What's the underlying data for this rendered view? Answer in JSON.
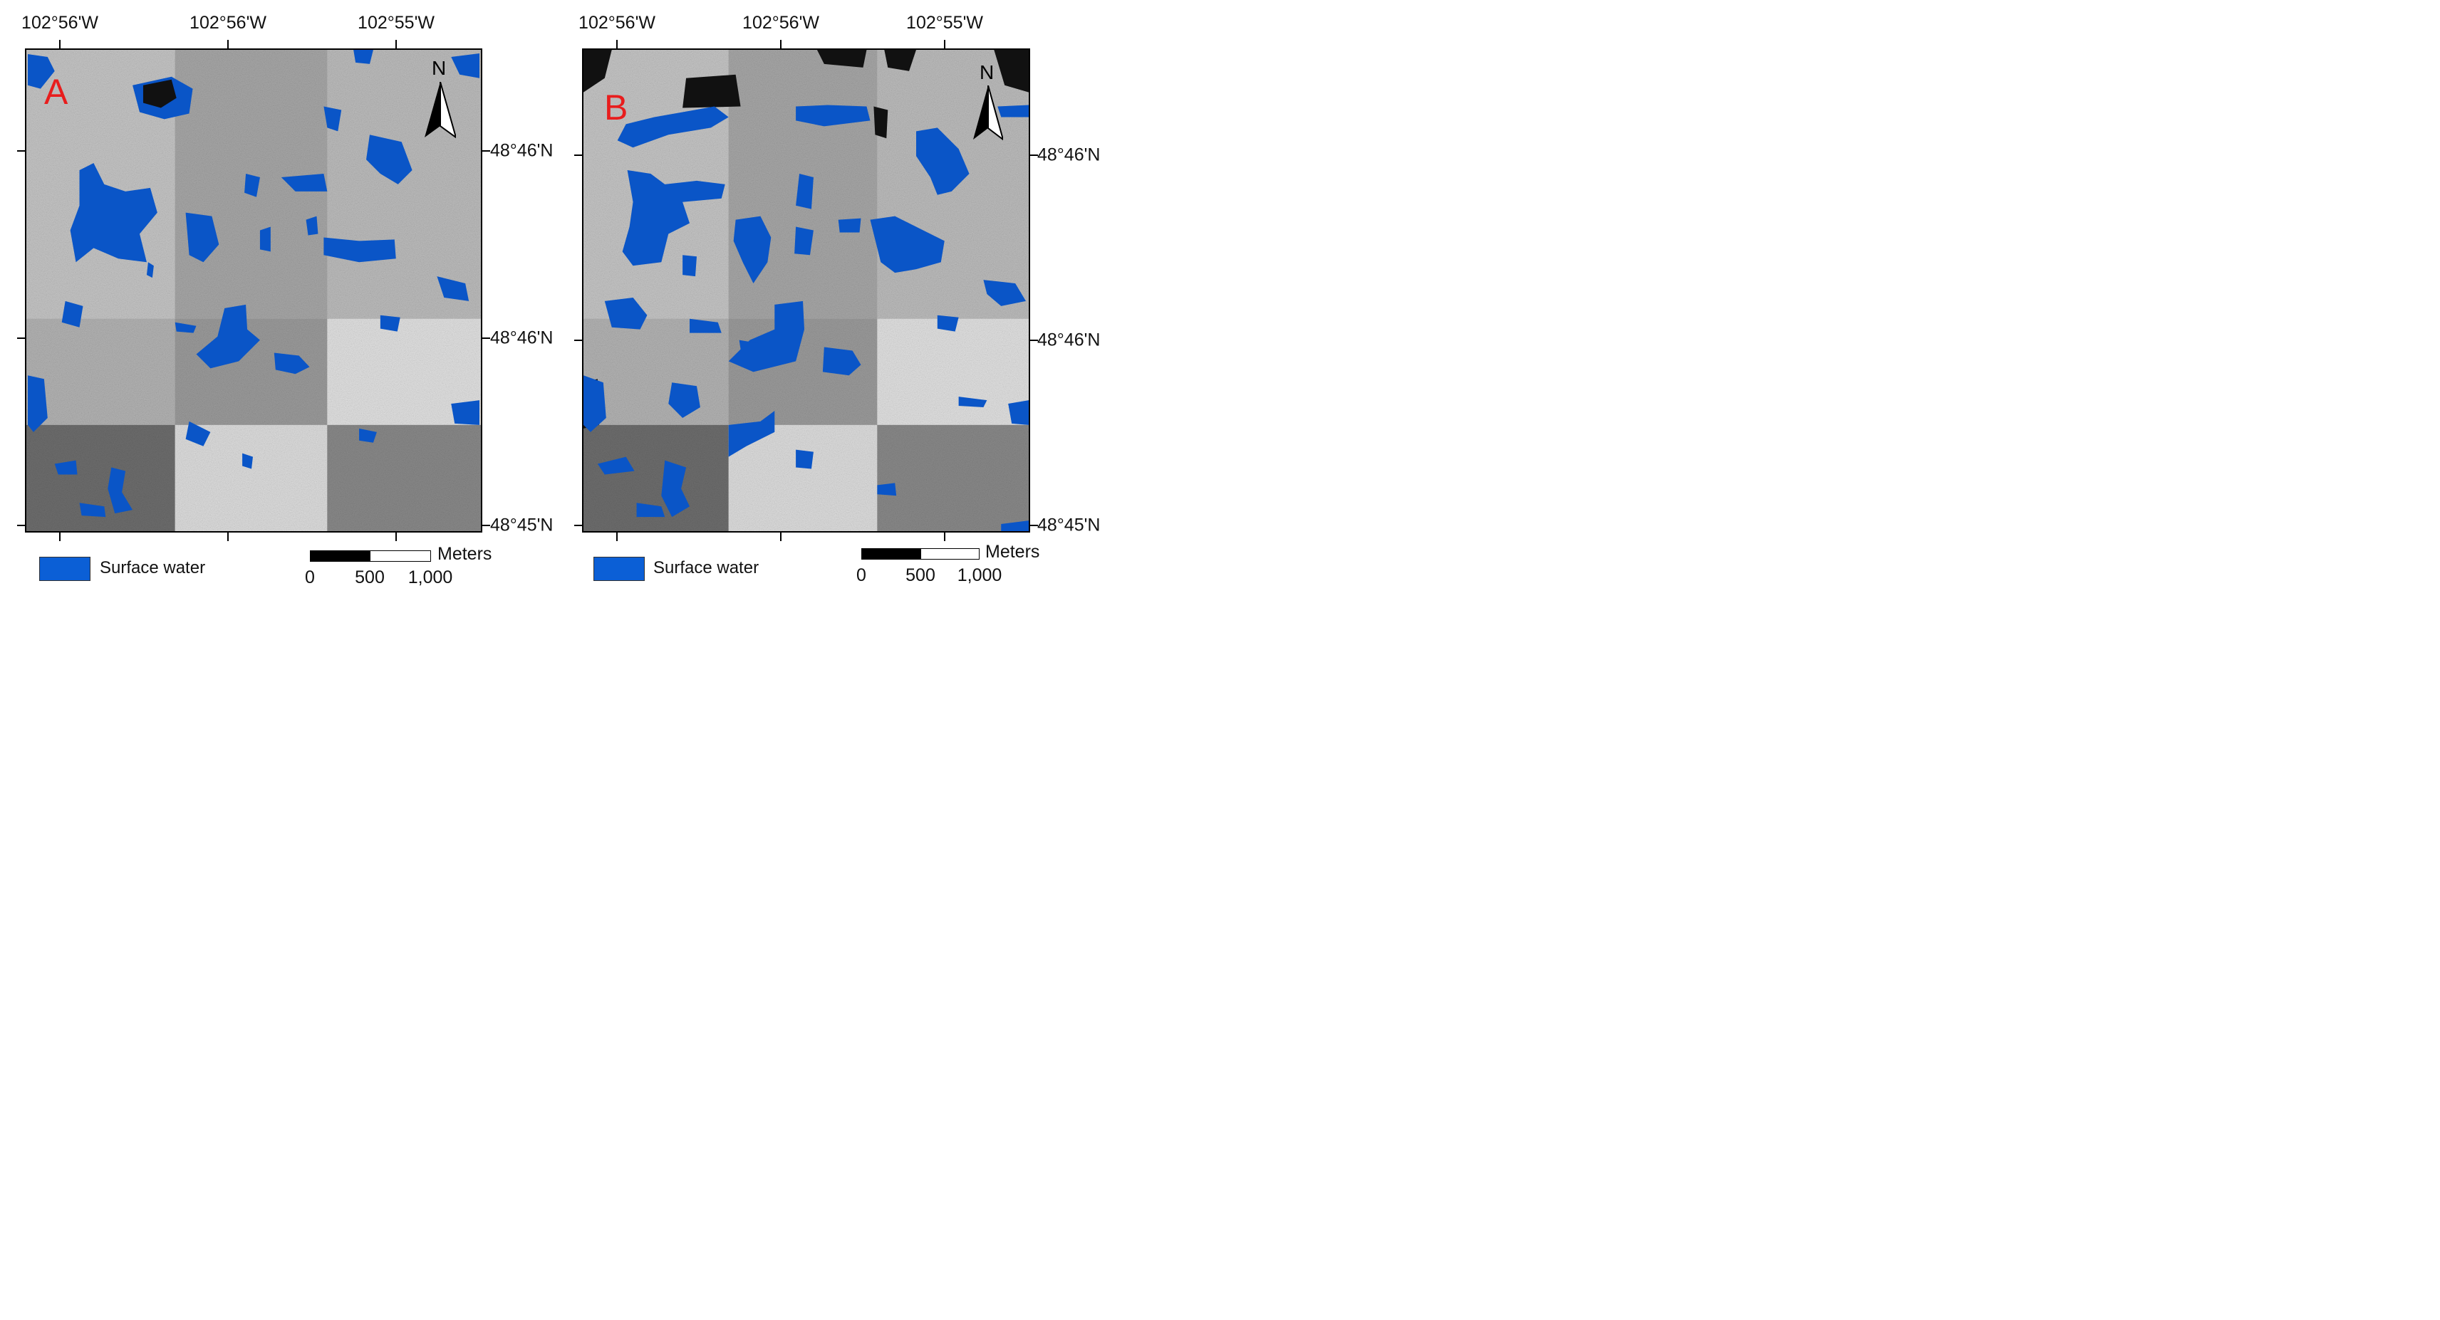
{
  "colors": {
    "water": "#0a55c7",
    "legend_water": "#0b5fd6",
    "panel_letter": "#e81d1d"
  },
  "panels": [
    {
      "letter": "A",
      "lon_labels": [
        "102°56'W",
        "102°56'W",
        "102°55'W"
      ],
      "lat_labels": [
        "48°46'N",
        "48°46'N",
        "48°45'N"
      ],
      "north": "N",
      "legend": {
        "label": "Surface water"
      },
      "scale": {
        "units": "Meters",
        "labels": [
          "0",
          "500",
          "1,000"
        ]
      }
    },
    {
      "letter": "B",
      "lon_labels": [
        "102°56'W",
        "102°56'W",
        "102°55'W"
      ],
      "lat_labels": [
        "48°46'N",
        "48°46'N",
        "48°45'N"
      ],
      "north": "N",
      "legend": {
        "label": "Surface water"
      },
      "scale": {
        "units": "Meters",
        "labels": [
          "0",
          "500",
          "1,000"
        ]
      }
    }
  ]
}
